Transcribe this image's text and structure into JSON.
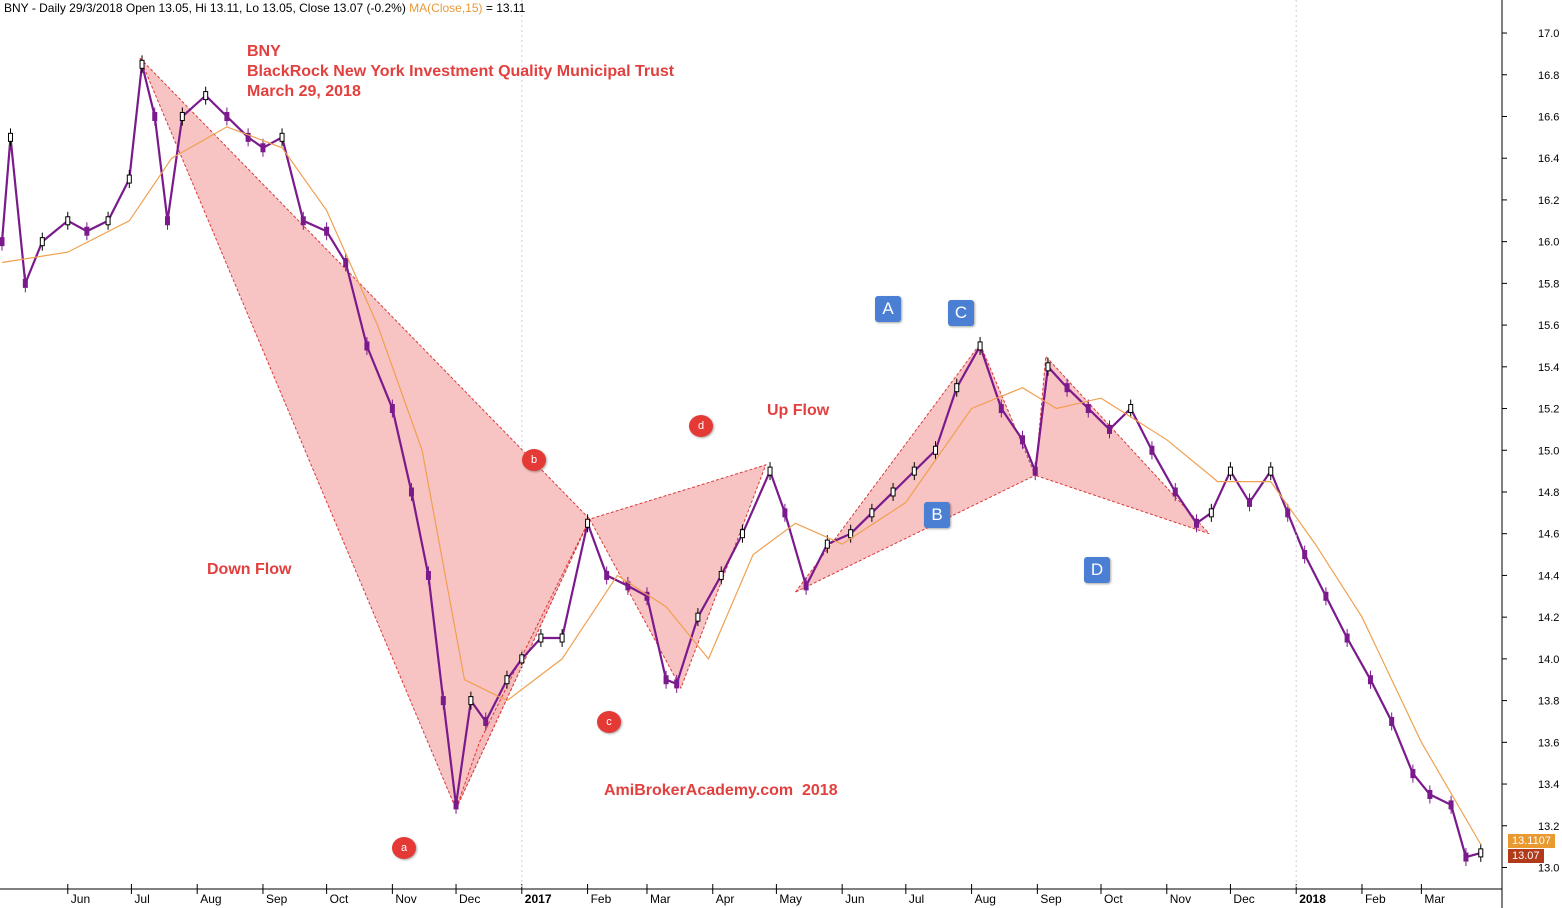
{
  "header": {
    "symbol": "BNY",
    "info": "- Daily 29/3/2018 Open 13.05, Hi 13.11, Lo 13.05, Close 13.07 (-0.2%)",
    "ma_label": "MA(Close,15)",
    "ma_value": "= 13.11"
  },
  "title": {
    "line1": "BNY",
    "line2": "BlackRock New York Investment Quality Municipal Trust",
    "line3": "March 29, 2018"
  },
  "annotations": {
    "down_flow": "Down Flow",
    "up_flow": "Up Flow",
    "watermark": "AmiBrokerAcademy.com  2018",
    "small_points": {
      "a": "a",
      "b": "b",
      "c": "c",
      "d": "d"
    },
    "big_points": {
      "A": "A",
      "B": "B",
      "C": "C",
      "D": "D"
    }
  },
  "price_tags": {
    "ma": "13.1107",
    "close": "13.07"
  },
  "colors": {
    "up_candle": "#000000",
    "down_candle": "#7a1a8c",
    "ma_line": "#f0a050",
    "pattern_fill": "#f7b9b9",
    "pattern_edge": "#d93a3a",
    "label_red": "#e2403f",
    "box_blue": "#4a7fd4",
    "ma_tag": "#e8992f",
    "close_tag": "#b03a1a"
  },
  "chart_data": {
    "type": "line",
    "title": "",
    "xlabel": "",
    "ylabel": "",
    "ylim": [
      12.94,
      17.12
    ],
    "grid": false,
    "y_ticks": [
      "13.0",
      "13.2",
      "13.4",
      "13.6",
      "13.8",
      "14.0",
      "14.2",
      "14.4",
      "14.6",
      "14.8",
      "15.0",
      "15.2",
      "15.4",
      "15.6",
      "15.8",
      "16.0",
      "16.2",
      "16.4",
      "16.6",
      "16.8",
      "17.0"
    ],
    "x_ticks": [
      {
        "date": "2016-06-01",
        "label": "Jun",
        "bold": false
      },
      {
        "date": "2016-07-01",
        "label": "Jul",
        "bold": false
      },
      {
        "date": "2016-08-01",
        "label": "Aug",
        "bold": false
      },
      {
        "date": "2016-09-01",
        "label": "Sep",
        "bold": false
      },
      {
        "date": "2016-10-01",
        "label": "Oct",
        "bold": false
      },
      {
        "date": "2016-11-01",
        "label": "Nov",
        "bold": false
      },
      {
        "date": "2016-12-01",
        "label": "Dec",
        "bold": false
      },
      {
        "date": "2017-01-01",
        "label": "2017",
        "bold": true
      },
      {
        "date": "2017-02-01",
        "label": "Feb",
        "bold": false
      },
      {
        "date": "2017-03-01",
        "label": "Mar",
        "bold": false
      },
      {
        "date": "2017-04-01",
        "label": "Apr",
        "bold": false
      },
      {
        "date": "2017-05-01",
        "label": "May",
        "bold": false
      },
      {
        "date": "2017-06-01",
        "label": "Jun",
        "bold": false
      },
      {
        "date": "2017-07-01",
        "label": "Jul",
        "bold": false
      },
      {
        "date": "2017-08-01",
        "label": "Aug",
        "bold": false
      },
      {
        "date": "2017-09-01",
        "label": "Sep",
        "bold": false
      },
      {
        "date": "2017-10-01",
        "label": "Oct",
        "bold": false
      },
      {
        "date": "2017-11-01",
        "label": "Nov",
        "bold": false
      },
      {
        "date": "2017-12-01",
        "label": "Dec",
        "bold": false
      },
      {
        "date": "2018-01-01",
        "label": "2018",
        "bold": true
      },
      {
        "date": "2018-02-01",
        "label": "Feb",
        "bold": false
      },
      {
        "date": "2018-03-01",
        "label": "Mar",
        "bold": false
      }
    ],
    "x_range": [
      "2016-05-01",
      "2018-04-08"
    ],
    "price_series": {
      "name": "BNY",
      "style": "candlestick (approximated)",
      "points": [
        [
          "2016-05-01",
          16.0
        ],
        [
          "2016-05-05",
          16.5
        ],
        [
          "2016-05-12",
          15.8
        ],
        [
          "2016-05-20",
          16.0
        ],
        [
          "2016-06-01",
          16.1
        ],
        [
          "2016-06-10",
          16.05
        ],
        [
          "2016-06-20",
          16.1
        ],
        [
          "2016-06-30",
          16.3
        ],
        [
          "2016-07-06",
          16.85
        ],
        [
          "2016-07-12",
          16.6
        ],
        [
          "2016-07-18",
          16.1
        ],
        [
          "2016-07-25",
          16.6
        ],
        [
          "2016-08-05",
          16.7
        ],
        [
          "2016-08-15",
          16.6
        ],
        [
          "2016-08-25",
          16.5
        ],
        [
          "2016-09-01",
          16.45
        ],
        [
          "2016-09-10",
          16.5
        ],
        [
          "2016-09-20",
          16.1
        ],
        [
          "2016-10-01",
          16.05
        ],
        [
          "2016-10-10",
          15.9
        ],
        [
          "2016-10-20",
          15.5
        ],
        [
          "2016-11-01",
          15.2
        ],
        [
          "2016-11-10",
          14.8
        ],
        [
          "2016-11-18",
          14.4
        ],
        [
          "2016-11-25",
          13.8
        ],
        [
          "2016-12-01",
          13.3
        ],
        [
          "2016-12-08",
          13.8
        ],
        [
          "2016-12-15",
          13.7
        ],
        [
          "2016-12-25",
          13.9
        ],
        [
          "2017-01-01",
          14.0
        ],
        [
          "2017-01-10",
          14.1
        ],
        [
          "2017-01-20",
          14.1
        ],
        [
          "2017-02-01",
          14.65
        ],
        [
          "2017-02-10",
          14.4
        ],
        [
          "2017-02-20",
          14.35
        ],
        [
          "2017-03-01",
          14.3
        ],
        [
          "2017-03-10",
          13.9
        ],
        [
          "2017-03-15",
          13.88
        ],
        [
          "2017-03-25",
          14.2
        ],
        [
          "2017-04-05",
          14.4
        ],
        [
          "2017-04-15",
          14.6
        ],
        [
          "2017-04-28",
          14.9
        ],
        [
          "2017-05-05",
          14.7
        ],
        [
          "2017-05-15",
          14.35
        ],
        [
          "2017-05-25",
          14.55
        ],
        [
          "2017-06-05",
          14.6
        ],
        [
          "2017-06-15",
          14.7
        ],
        [
          "2017-06-25",
          14.8
        ],
        [
          "2017-07-05",
          14.9
        ],
        [
          "2017-07-15",
          15.0
        ],
        [
          "2017-07-25",
          15.3
        ],
        [
          "2017-08-05",
          15.5
        ],
        [
          "2017-08-15",
          15.2
        ],
        [
          "2017-08-25",
          15.05
        ],
        [
          "2017-08-31",
          14.9
        ],
        [
          "2017-09-06",
          15.4
        ],
        [
          "2017-09-15",
          15.3
        ],
        [
          "2017-09-25",
          15.2
        ],
        [
          "2017-10-05",
          15.1
        ],
        [
          "2017-10-15",
          15.2
        ],
        [
          "2017-10-25",
          15.0
        ],
        [
          "2017-11-05",
          14.8
        ],
        [
          "2017-11-15",
          14.65
        ],
        [
          "2017-11-22",
          14.7
        ],
        [
          "2017-12-01",
          14.9
        ],
        [
          "2017-12-10",
          14.75
        ],
        [
          "2017-12-20",
          14.9
        ],
        [
          "2017-12-28",
          14.7
        ],
        [
          "2018-01-05",
          14.5
        ],
        [
          "2018-01-15",
          14.3
        ],
        [
          "2018-01-25",
          14.1
        ],
        [
          "2018-02-05",
          13.9
        ],
        [
          "2018-02-15",
          13.7
        ],
        [
          "2018-02-25",
          13.45
        ],
        [
          "2018-03-05",
          13.35
        ],
        [
          "2018-03-15",
          13.3
        ],
        [
          "2018-03-22",
          13.05
        ],
        [
          "2018-03-29",
          13.07
        ]
      ]
    },
    "ma_series": {
      "name": "MA(Close,15)",
      "points": [
        [
          "2016-05-01",
          15.9
        ],
        [
          "2016-06-01",
          15.95
        ],
        [
          "2016-06-30",
          16.1
        ],
        [
          "2016-07-20",
          16.4
        ],
        [
          "2016-08-15",
          16.55
        ],
        [
          "2016-09-10",
          16.45
        ],
        [
          "2016-10-01",
          16.15
        ],
        [
          "2016-10-25",
          15.6
        ],
        [
          "2016-11-15",
          15.0
        ],
        [
          "2016-12-05",
          13.9
        ],
        [
          "2016-12-25",
          13.8
        ],
        [
          "2017-01-20",
          14.0
        ],
        [
          "2017-02-15",
          14.4
        ],
        [
          "2017-03-10",
          14.25
        ],
        [
          "2017-03-30",
          14.0
        ],
        [
          "2017-04-20",
          14.5
        ],
        [
          "2017-05-10",
          14.65
        ],
        [
          "2017-06-01",
          14.55
        ],
        [
          "2017-07-01",
          14.75
        ],
        [
          "2017-08-01",
          15.2
        ],
        [
          "2017-08-25",
          15.3
        ],
        [
          "2017-09-10",
          15.2
        ],
        [
          "2017-10-01",
          15.25
        ],
        [
          "2017-11-01",
          15.05
        ],
        [
          "2017-11-25",
          14.85
        ],
        [
          "2017-12-20",
          14.85
        ],
        [
          "2018-01-10",
          14.55
        ],
        [
          "2018-02-01",
          14.2
        ],
        [
          "2018-03-01",
          13.6
        ],
        [
          "2018-03-29",
          13.11
        ]
      ]
    },
    "patterns": [
      {
        "name": "down_flow",
        "points": [
          [
            "2016-07-05",
            16.88
          ],
          [
            "2016-12-01",
            13.28
          ],
          [
            "2017-02-02",
            14.67
          ]
        ]
      },
      {
        "name": "a_to_b",
        "points": [
          [
            "2016-12-01",
            13.28
          ],
          [
            "2017-02-02",
            14.67
          ],
          [
            "2016-12-12",
            13.6
          ]
        ]
      },
      {
        "name": "b_c_d",
        "points": [
          [
            "2017-02-02",
            14.67
          ],
          [
            "2017-03-17",
            13.86
          ],
          [
            "2017-04-26",
            14.93
          ]
        ]
      },
      {
        "name": "up_flow",
        "points": [
          [
            "2017-05-10",
            14.32
          ],
          [
            "2017-08-05",
            15.51
          ],
          [
            "2017-08-31",
            14.88
          ]
        ]
      },
      {
        "name": "c_to_d",
        "points": [
          [
            "2017-08-31",
            14.88
          ],
          [
            "2017-09-05",
            15.45
          ],
          [
            "2017-11-21",
            14.6
          ]
        ]
      }
    ]
  }
}
